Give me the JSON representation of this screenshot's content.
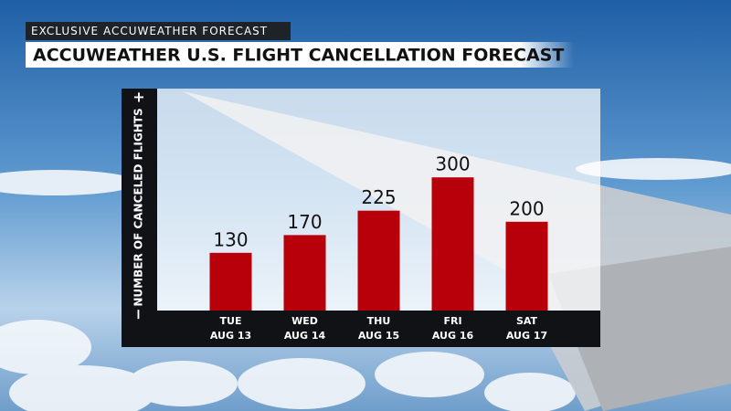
{
  "chart_data": {
    "type": "bar",
    "kicker": "EXCLUSIVE ACCUWEATHER FORECAST",
    "title": "ACCUWEATHER U.S. FLIGHT CANCELLATION FORECAST",
    "y_label": "NUMBER OF CANCELED FLIGHTS",
    "y_top_symbol": "+",
    "y_bottom_symbol": "−",
    "categories": [
      "TUE",
      "WED",
      "THU",
      "FRI",
      "SAT"
    ],
    "dates": [
      "AUG 13",
      "AUG 14",
      "AUG 15",
      "AUG 16",
      "AUG 17"
    ],
    "values": [
      130,
      170,
      225,
      300,
      200
    ],
    "color": "#b8000a",
    "ylim": [
      0,
      500
    ]
  }
}
